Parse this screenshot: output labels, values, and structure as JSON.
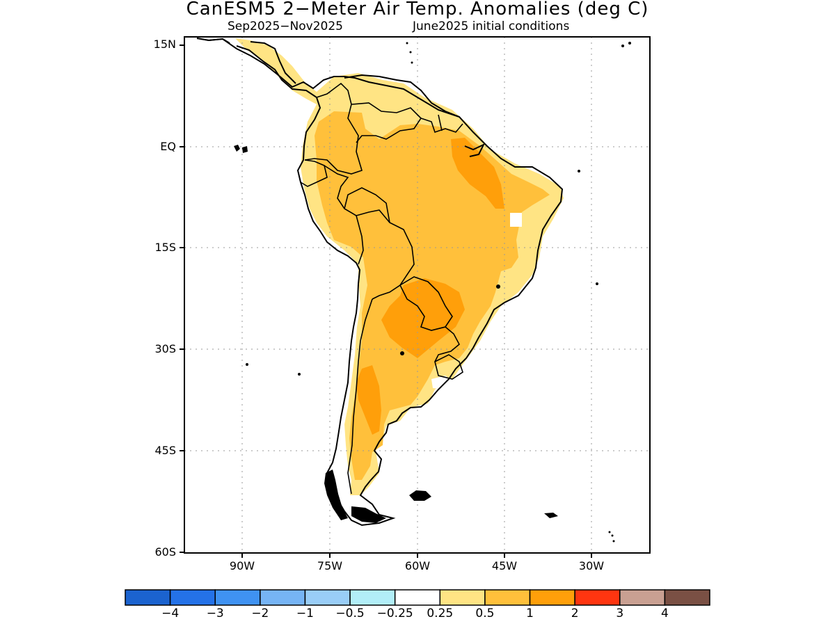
{
  "title": "CanESM5 2−Meter Air Temp. Anomalies (deg C)",
  "subtitle_left": "Sep2025−Nov2025",
  "subtitle_right": "June2025 initial conditions",
  "lat_labels": [
    "15N",
    "EQ",
    "15S",
    "30S",
    "45S",
    "60S"
  ],
  "lon_labels": [
    "90W",
    "75W",
    "60W",
    "45W",
    "30W"
  ],
  "colorbar": {
    "labels": [
      "−4",
      "−3",
      "−2",
      "−1",
      "−0.5",
      "−0.25",
      "0.25",
      "0.5",
      "1",
      "2",
      "3",
      "4"
    ],
    "colors": [
      "#1b63cf",
      "#2472e8",
      "#3f92f2",
      "#76b4f5",
      "#99cdf7",
      "#b2eef8",
      "#ffffff",
      "#ffe484",
      "#ffc03b",
      "#ff9f0a",
      "#ff3510",
      "#c9a092",
      "#7a5044"
    ]
  },
  "map": {
    "lon_range": [
      -97,
      -17
    ],
    "lat_range": [
      -60,
      15
    ],
    "grid": "dotted",
    "coastlines": true,
    "country_borders": true
  }
}
